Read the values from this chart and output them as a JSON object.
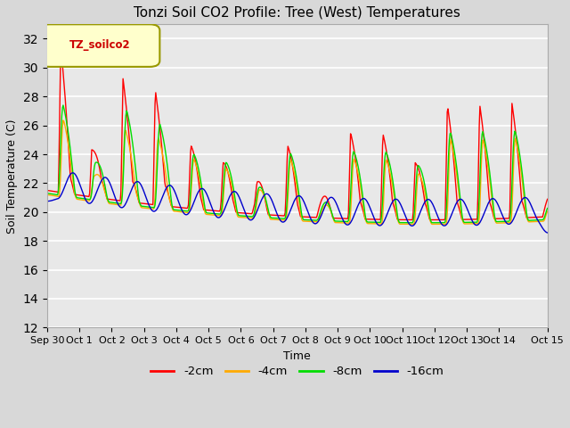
{
  "title": "Tonzi Soil CO2 Profile: Tree (West) Temperatures",
  "xlabel": "Time",
  "ylabel": "Soil Temperature (C)",
  "ylim": [
    12,
    33
  ],
  "yticks": [
    12,
    14,
    16,
    18,
    20,
    22,
    24,
    26,
    28,
    30,
    32
  ],
  "legend_label": "TZ_soilco2",
  "series_labels": [
    "-2cm",
    "-4cm",
    "-8cm",
    "-16cm"
  ],
  "series_colors": [
    "#ff0000",
    "#ffaa00",
    "#00dd00",
    "#0000cc"
  ],
  "bg_color": "#d8d8d8",
  "plot_bg_color": "#e8e8e8",
  "n_points": 720,
  "x_start": 0,
  "x_end": 15.5,
  "xtick_positions": [
    0,
    1,
    2,
    3,
    4,
    5,
    6,
    7,
    8,
    9,
    10,
    11,
    12,
    13,
    14,
    15.5
  ],
  "xtick_labels": [
    "Sep 30",
    "Oct 1",
    "Oct 2",
    "Oct 3",
    "Oct 4",
    "Oct 5",
    "Oct 6",
    "Oct 7",
    "Oct 8",
    "Oct 9",
    "Oct 10",
    "Oct 11",
    "Oct 12",
    "Oct 13",
    "Oct 14",
    "Oct 15"
  ]
}
